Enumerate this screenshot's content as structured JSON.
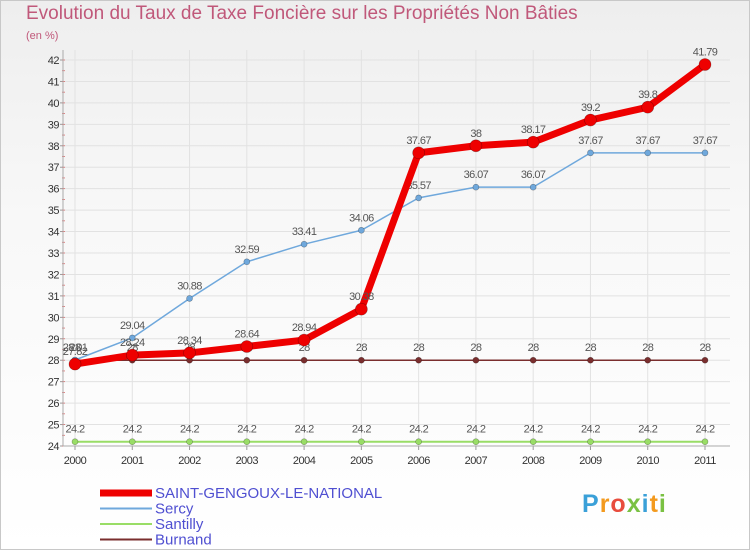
{
  "title": "Evolution du Taux de Taxe Foncière sur les Propriétés Non Bâties",
  "unit": "(en %)",
  "logo": {
    "text": "Proxiti",
    "colors": [
      "#3aa0d8",
      "#f39a1e",
      "#e84c3d",
      "#7ac143",
      "#3aa0d8",
      "#f39a1e",
      "#7ac143"
    ]
  },
  "chart_data": {
    "type": "line",
    "title": "Evolution du Taux de Taxe Foncière sur les Propriétés Non Bâties",
    "ylabel": "(en %)",
    "xlabel": "",
    "x": [
      "2000",
      "2001",
      "2002",
      "2003",
      "2004",
      "2005",
      "2006",
      "2007",
      "2008",
      "2009",
      "2010",
      "2011"
    ],
    "ylim": [
      24,
      42
    ],
    "yticks": [
      24,
      25,
      26,
      27,
      28,
      29,
      30,
      31,
      32,
      33,
      34,
      35,
      36,
      37,
      38,
      39,
      40,
      41,
      42
    ],
    "legend_position": "bottom-left",
    "series": [
      {
        "name": "Burnand",
        "color": "#7a2e2e",
        "width": 1.5,
        "marker": 3,
        "values": [
          28,
          28,
          28,
          28,
          28,
          28,
          28,
          28,
          28,
          28,
          28,
          28
        ],
        "labels": [
          "28",
          "28",
          "28",
          "28",
          "28",
          "28",
          "28",
          "28",
          "28",
          "28",
          "28",
          "28"
        ]
      },
      {
        "name": "Santilly",
        "color": "#99dd66",
        "width": 2,
        "marker": 3,
        "values": [
          24.2,
          24.2,
          24.2,
          24.2,
          24.2,
          24.2,
          24.2,
          24.2,
          24.2,
          24.2,
          24.2,
          24.2
        ],
        "labels": [
          "24.2",
          "24.2",
          "24.2",
          "24.2",
          "24.2",
          "24.2",
          "24.2",
          "24.2",
          "24.2",
          "24.2",
          "24.2",
          "24.2"
        ]
      },
      {
        "name": "Sercy",
        "color": "#6fa8dc",
        "width": 1.5,
        "marker": 3,
        "values": [
          28.01,
          29.04,
          30.88,
          32.59,
          33.41,
          34.06,
          35.57,
          36.07,
          36.07,
          37.67,
          37.67,
          37.67
        ],
        "labels": [
          "28.01",
          "29.04",
          "30.88",
          "32.59",
          "33.41",
          "34.06",
          "35.57",
          "36.07",
          "36.07",
          "37.67",
          "37.67",
          "37.67"
        ]
      },
      {
        "name": "SAINT-GENGOUX-LE-NATIONAL",
        "color": "#ee0000",
        "width": 7,
        "marker": 6,
        "values": [
          27.82,
          28.24,
          28.34,
          28.64,
          28.94,
          30.38,
          37.67,
          38,
          38.17,
          39.2,
          39.8,
          41.79
        ],
        "labels": [
          "27.82",
          "28.24",
          "28.34",
          "28.64",
          "28.94",
          "30.38",
          "37.67",
          "38",
          "38.17",
          "39.2",
          "39.8",
          "41.79"
        ]
      }
    ],
    "legend": [
      "SAINT-GENGOUX-LE-NATIONAL",
      "Sercy",
      "Santilly",
      "Burnand"
    ]
  }
}
